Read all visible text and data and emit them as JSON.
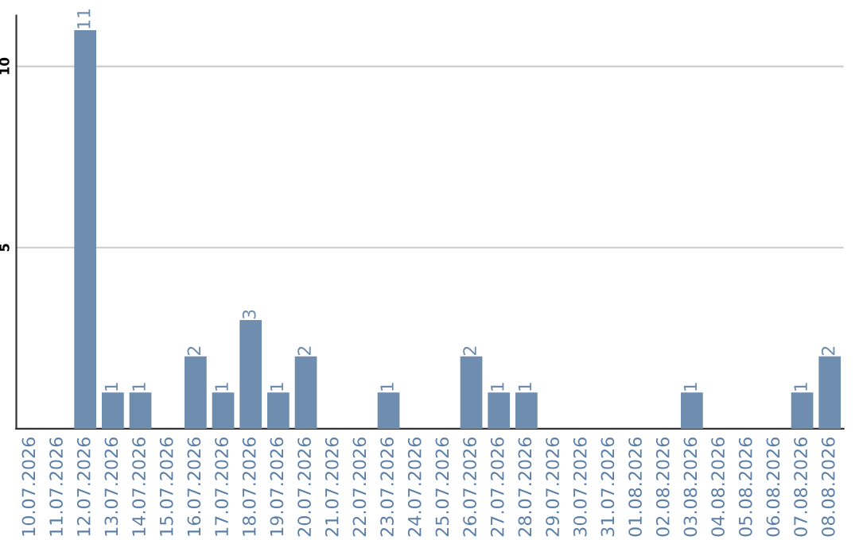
{
  "chart_data": {
    "type": "bar",
    "categories": [
      "10.07.2026",
      "11.07.2026",
      "12.07.2026",
      "13.07.2026",
      "14.07.2026",
      "15.07.2026",
      "16.07.2026",
      "17.07.2026",
      "18.07.2026",
      "19.07.2026",
      "20.07.2026",
      "21.07.2026",
      "22.07.2026",
      "23.07.2026",
      "24.07.2026",
      "25.07.2026",
      "26.07.2026",
      "27.07.2026",
      "28.07.2026",
      "29.07.2026",
      "30.07.2026",
      "31.07.2026",
      "01.08.2026",
      "02.08.2026",
      "03.08.2026",
      "04.08.2026",
      "05.08.2026",
      "06.08.2026",
      "07.08.2026",
      "08.08.2026"
    ],
    "values": [
      0,
      0,
      11,
      1,
      1,
      0,
      2,
      1,
      3,
      1,
      2,
      0,
      0,
      1,
      0,
      0,
      2,
      1,
      1,
      0,
      0,
      0,
      0,
      0,
      1,
      0,
      0,
      0,
      1,
      2
    ],
    "value_labels": [
      null,
      null,
      "11",
      "1",
      "1",
      null,
      "2",
      "1",
      "3",
      "1",
      "2",
      null,
      null,
      "1",
      null,
      null,
      "2",
      "1",
      "1",
      null,
      null,
      null,
      null,
      null,
      "1",
      null,
      null,
      null,
      "1",
      "2"
    ],
    "color": "#6f8daf",
    "ylim": [
      0,
      11.4
    ],
    "yticks": [
      5,
      10
    ],
    "grid": "y"
  }
}
